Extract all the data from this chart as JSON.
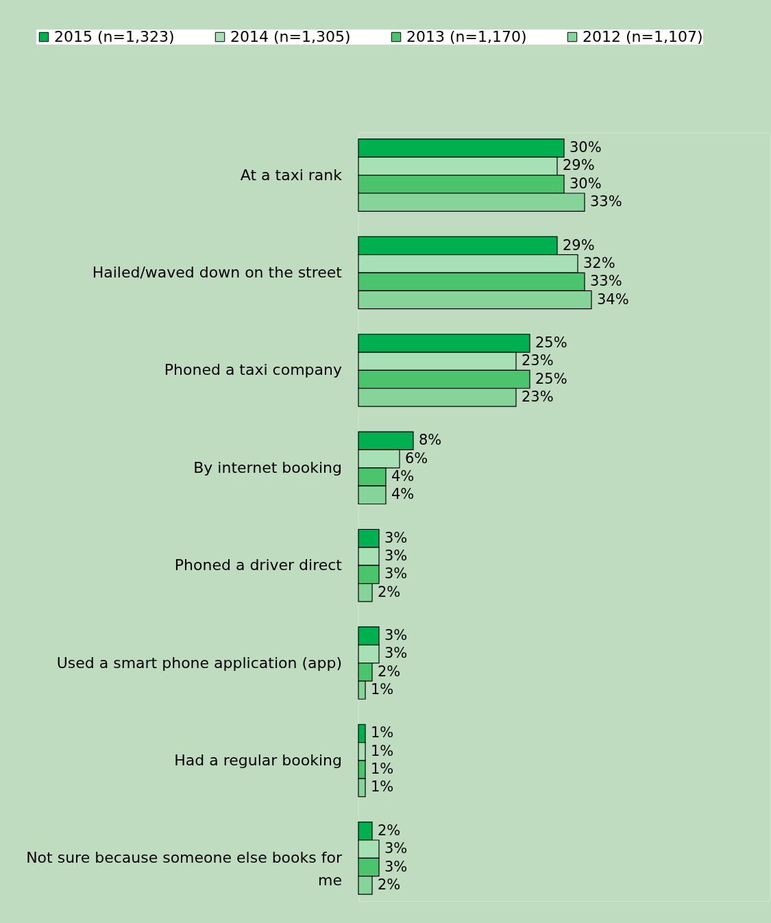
{
  "chart_data": {
    "type": "bar",
    "orientation": "horizontal",
    "legend": "top",
    "categories": [
      "At a taxi rank",
      "Hailed/waved down on the street",
      "Phoned a taxi company",
      "By internet booking",
      "Phoned a driver direct",
      "Used a smart phone application (app)",
      "Had a regular booking",
      "Not sure because someone else books for me"
    ],
    "series": [
      {
        "name": "2015 (n=1,323)",
        "color": "#00b050",
        "values": [
          30,
          29,
          25,
          8,
          3,
          3,
          1,
          2
        ],
        "value_labels": [
          "30%",
          "29%",
          "25%",
          "8%",
          "3%",
          "3%",
          "1%",
          "2%"
        ]
      },
      {
        "name": "2014 (n=1,305)",
        "color": "#a6e0b4",
        "values": [
          29,
          32,
          23,
          6,
          3,
          3,
          1,
          3
        ],
        "value_labels": [
          "29%",
          "32%",
          "23%",
          "6%",
          "3%",
          "3%",
          "1%",
          "3%"
        ]
      },
      {
        "name": "2013 (n=1,170)",
        "color": "#4cc46e",
        "values": [
          30,
          33,
          25,
          4,
          3,
          2,
          1,
          3
        ],
        "value_labels": [
          "30%",
          "33%",
          "25%",
          "4%",
          "3%",
          "2%",
          "1%",
          "3%"
        ]
      },
      {
        "name": "2012 (n=1,107)",
        "color": "#86d49a",
        "values": [
          33,
          34,
          23,
          4,
          2,
          1,
          1,
          2
        ],
        "value_labels": [
          "33%",
          "34%",
          "23%",
          "4%",
          "2%",
          "1%",
          "1%",
          "2%"
        ]
      }
    ]
  }
}
